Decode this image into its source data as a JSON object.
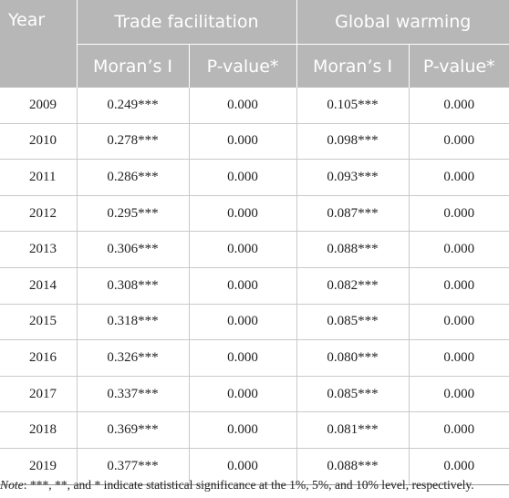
{
  "table": {
    "year_header": "Year",
    "groups": [
      "Trade facilitation",
      "Global warming"
    ],
    "subheaders": [
      "Moran’s I",
      "P-value*",
      "Moran’s I",
      "P-value*"
    ],
    "rows": [
      {
        "year": "2009",
        "tf_moran": "0.249***",
        "tf_p": "0.000",
        "gw_moran": "0.105***",
        "gw_p": "0.000"
      },
      {
        "year": "2010",
        "tf_moran": "0.278***",
        "tf_p": "0.000",
        "gw_moran": "0.098***",
        "gw_p": "0.000"
      },
      {
        "year": "2011",
        "tf_moran": "0.286***",
        "tf_p": "0.000",
        "gw_moran": "0.093***",
        "gw_p": "0.000"
      },
      {
        "year": "2012",
        "tf_moran": "0.295***",
        "tf_p": "0.000",
        "gw_moran": "0.087***",
        "gw_p": "0.000"
      },
      {
        "year": "2013",
        "tf_moran": "0.306***",
        "tf_p": "0.000",
        "gw_moran": "0.088***",
        "gw_p": "0.000"
      },
      {
        "year": "2014",
        "tf_moran": "0.308***",
        "tf_p": "0.000",
        "gw_moran": "0.082***",
        "gw_p": "0.000"
      },
      {
        "year": "2015",
        "tf_moran": "0.318***",
        "tf_p": "0.000",
        "gw_moran": "0.085***",
        "gw_p": "0.000"
      },
      {
        "year": "2016",
        "tf_moran": "0.326***",
        "tf_p": "0.000",
        "gw_moran": "0.080***",
        "gw_p": "0.000"
      },
      {
        "year": "2017",
        "tf_moran": "0.337***",
        "tf_p": "0.000",
        "gw_moran": "0.085***",
        "gw_p": "0.000"
      },
      {
        "year": "2018",
        "tf_moran": "0.369***",
        "tf_p": "0.000",
        "gw_moran": "0.081***",
        "gw_p": "0.000"
      },
      {
        "year": "2019",
        "tf_moran": "0.377***",
        "tf_p": "0.000",
        "gw_moran": "0.088***",
        "gw_p": "0.000"
      }
    ]
  },
  "note": {
    "label": "Note",
    "text": ": ***, **, and * indicate statistical significance at the 1%, 5%, and 10% level, respectively."
  },
  "colors": {
    "header_background": "#b7b7b7",
    "header_text": "#ffffff",
    "row_divider": "#c9c9c9"
  }
}
